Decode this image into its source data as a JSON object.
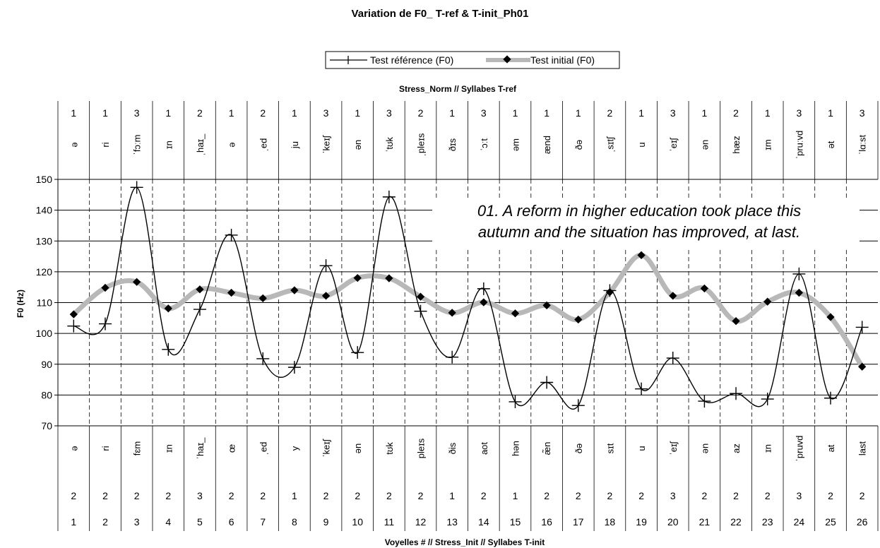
{
  "chart_data": {
    "type": "line",
    "title": "Variation de F0_ T-ref & T-init_Ph01",
    "ylabel": "F0 (Hz)",
    "top_axis_label": "Stress_Norm // Syllabes T-ref",
    "bottom_axis_label": "Voyelles # // Stress_Init // Syllabes T-init",
    "annotation": [
      "01. A reform in higher education took place this",
      "autumn and the situation has improved, at last."
    ],
    "ylim": [
      70,
      150
    ],
    "y_ticks": [
      70,
      80,
      90,
      100,
      110,
      120,
      130,
      140,
      150
    ],
    "grid": true,
    "legend_position": "top-center",
    "x": [
      1,
      2,
      3,
      4,
      5,
      6,
      7,
      8,
      9,
      10,
      11,
      12,
      13,
      14,
      15,
      16,
      17,
      18,
      19,
      20,
      21,
      22,
      23,
      24,
      25,
      26
    ],
    "stress_norm": [
      "1",
      "1",
      "3",
      "1",
      "2",
      "1",
      "2",
      "1",
      "3",
      "1",
      "3",
      "2",
      "1",
      "3",
      "1",
      "1",
      "1",
      "2",
      "1",
      "3",
      "1",
      "2",
      "1",
      "3",
      "1",
      "3"
    ],
    "syllables_ref": [
      "ə",
      "ri",
      "ˈfɔːm",
      "ɪn",
      "ˌhaɪ_",
      "ə",
      "ˌed",
      "ju",
      "ˈkeɪʃ",
      "ən",
      "ˈtʊk",
      "ˌpleɪs",
      "ðɪs",
      "ˈɔːt",
      "əm",
      "ænd",
      "ðə",
      "ˌsɪtʃ",
      "u",
      "ˈeɪʃ",
      "ən",
      "hæz",
      "ɪm",
      "ˈpruːvd",
      "ət",
      "ˈlɑːst"
    ],
    "syllables_init": [
      "ə",
      "ri",
      "fɛm",
      "ɪn",
      "ˈhaɪ_",
      "œ",
      "ˌed",
      "y",
      "ˈkeɪʃ",
      "ən",
      "tʊk",
      "pleɪs",
      "ðis",
      "aot",
      "hən",
      "æ̃n",
      "ðə",
      "sɪt",
      "u",
      "ˈeɪʃ",
      "ən",
      "az",
      "ɪn",
      "ˈpruvd",
      "at",
      "last"
    ],
    "stress_init": [
      "2",
      "2",
      "2",
      "2",
      "3",
      "2",
      "2",
      "1",
      "2",
      "2",
      "2",
      "2",
      "1",
      "2",
      "1",
      "2",
      "2",
      "2",
      "2",
      "3",
      "2",
      "2",
      "2",
      "3",
      "2",
      "2"
    ],
    "series": [
      {
        "name": "Test référence (F0)",
        "values": [
          102.4,
          103.1,
          147.4,
          94.8,
          107.8,
          131.9,
          91.8,
          89.0,
          122.0,
          93.8,
          144.3,
          107.2,
          92.3,
          114.5,
          77.8,
          84.1,
          76.6,
          113.9,
          82.0,
          92.0,
          78.0,
          80.5,
          78.7,
          119.3,
          79.0,
          102.0
        ],
        "color": "#000000"
      },
      {
        "name": "Test initial (F0)",
        "values": [
          106.2,
          114.8,
          116.7,
          108.1,
          114.3,
          113.2,
          111.4,
          114.0,
          112.2,
          118.0,
          117.9,
          111.9,
          106.7,
          110.1,
          106.5,
          109.1,
          104.5,
          113.4,
          125.4,
          112.2,
          114.6,
          104.0,
          110.3,
          113.2,
          105.3,
          89.2
        ],
        "color": "#b8b8b8"
      }
    ]
  }
}
